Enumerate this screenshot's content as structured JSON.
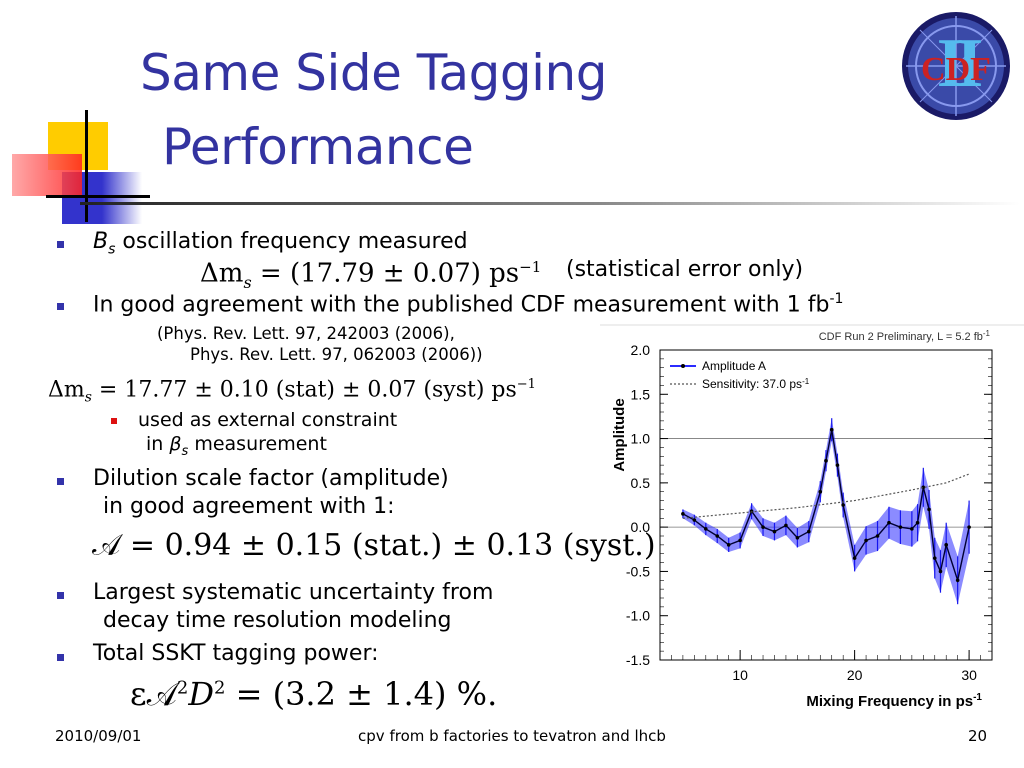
{
  "slide": {
    "title_line1": "Same Side Tagging",
    "title_line2": "Performance",
    "logo_text": "CDF",
    "logo_numeral": "II",
    "bullets": {
      "b1_sym": "B",
      "b1_sub": "s",
      "b1_text": " oscillation frequency measured",
      "b1_eq": "Δm",
      "b1_eq_sub": "s",
      "b1_eq_rest": " = (17.79 ± 0.07) ps",
      "b1_eq_sup": "−1",
      "b1_note": "(statistical error only)",
      "b2_text": "In good agreement with the published CDF measurement with 1 fb",
      "b2_sup": "-1",
      "ref1": "(Phys. Rev. Lett. 97, 242003 (2006),",
      "ref2": "Phys. Rev. Lett. 97, 062003 (2006))",
      "b2_eq": "Δm",
      "b2_eq_sub": "s",
      "b2_eq_rest": " = 17.77  ± 0.10 (stat)  ± 0.07 (syst) ps",
      "b2_eq_sup": "−1",
      "sub1_line1": "used as external constraint",
      "sub1_in": "in ",
      "sub1_beta": "β",
      "sub1_beta_sub": "s",
      "sub1_meas": " measurement",
      "b3_line1": "Dilution scale factor (amplitude)",
      "b3_line2": "in good agreement with 1:",
      "b3_eq": "𝒜 = 0.94 ± 0.15 (stat.) ± 0.13 (syst.)",
      "b4_line1": "Largest systematic uncertainty from",
      "b4_line2": "decay time resolution modeling",
      "b5_text": "Total SSKT tagging power:",
      "b5_eq": "ε𝒜",
      "b5_eq_sup1": "2",
      "b5_eq_D": "D",
      "b5_eq_sup2": "2",
      "b5_eq_rest": " = (3.2 ± 1.4) %."
    },
    "footer": {
      "date": "2010/09/01",
      "center": "cpv from b factories to tevatron and lhcb",
      "page": "20"
    },
    "colors": {
      "title": "#3333a0",
      "bullet": "#3333aa",
      "sub_bullet": "#dd1111",
      "series": "#2b2bff"
    }
  },
  "chart_data": {
    "type": "line",
    "header": "CDF Run 2 Preliminary, L = 5.2 fb",
    "header_sup": "-1",
    "xlabel": "Mixing Frequency in ps",
    "xlabel_sup": "-1",
    "ylabel": "Amplitude",
    "xlim": [
      3,
      32
    ],
    "ylim": [
      -1.5,
      2.0
    ],
    "x_ticks": [
      "10",
      "20",
      "30"
    ],
    "y_ticks": [
      "2.0",
      "1.5",
      "1.0",
      "0.5",
      "0.0",
      "-0.5",
      "-1.0",
      "-1.5"
    ],
    "reference_lines": [
      0.0,
      1.0
    ],
    "legend": {
      "position": "top-left",
      "amplitude_label": "Amplitude A",
      "sensitivity_label": "Sensitivity: 37.0 ps",
      "sensitivity_sup": "-1"
    },
    "series": [
      {
        "name": "Amplitude A",
        "x": [
          5,
          6,
          7,
          8,
          9,
          10,
          11,
          12,
          13,
          14,
          15,
          16,
          17,
          17.5,
          18,
          18.5,
          19,
          20,
          21,
          22,
          23,
          24,
          25,
          25.5,
          26,
          26.5,
          27,
          27.5,
          28,
          29,
          30
        ],
        "y": [
          0.15,
          0.08,
          -0.02,
          -0.1,
          -0.2,
          -0.15,
          0.18,
          0.0,
          -0.05,
          0.02,
          -0.12,
          -0.05,
          0.4,
          0.75,
          1.1,
          0.7,
          0.25,
          -0.35,
          -0.15,
          -0.1,
          0.05,
          0.0,
          -0.02,
          0.05,
          0.45,
          0.2,
          -0.35,
          -0.5,
          -0.2,
          -0.6,
          0.0
        ],
        "err": [
          0.05,
          0.06,
          0.07,
          0.08,
          0.08,
          0.09,
          0.09,
          0.1,
          0.1,
          0.11,
          0.11,
          0.12,
          0.12,
          0.12,
          0.13,
          0.13,
          0.14,
          0.15,
          0.16,
          0.17,
          0.18,
          0.19,
          0.2,
          0.21,
          0.22,
          0.22,
          0.23,
          0.24,
          0.25,
          0.27,
          0.3
        ]
      },
      {
        "name": "Sensitivity: 37.0 ps-1",
        "x": [
          5,
          10,
          15,
          20,
          25,
          28,
          30
        ],
        "y": [
          0.1,
          0.16,
          0.22,
          0.3,
          0.42,
          0.5,
          0.6
        ]
      }
    ]
  }
}
